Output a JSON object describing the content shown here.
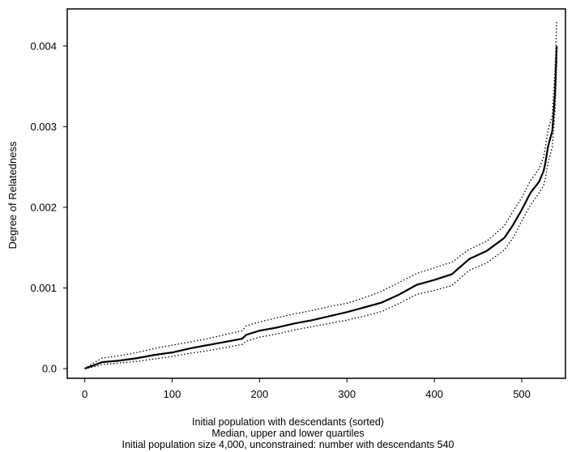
{
  "chart_data": {
    "type": "line",
    "title": "",
    "xlabel": "Initial population with descendants (sorted)",
    "ylabel": "Degree of Relatedness",
    "captions": [
      "Median, upper and lower quartiles",
      "Initial population size 4,000, unconstrained: number with descendants 540"
    ],
    "xlim": [
      -20,
      550
    ],
    "ylim": [
      -0.00012,
      0.00446
    ],
    "x_ticks": [
      0,
      100,
      200,
      300,
      400,
      500
    ],
    "y_ticks": [
      0.0,
      0.001,
      0.002,
      0.003,
      0.004
    ],
    "y_tick_labels": [
      "0.0",
      "0.001",
      "0.002",
      "0.003",
      "0.004"
    ],
    "grid": false,
    "legend": "none",
    "series": [
      {
        "style": "solid",
        "x": [
          0,
          10,
          20,
          40,
          60,
          80,
          100,
          120,
          140,
          160,
          180,
          185,
          200,
          220,
          240,
          260,
          280,
          300,
          320,
          340,
          360,
          380,
          400,
          420,
          440,
          460,
          480,
          490,
          500,
          510,
          520,
          525,
          527,
          530,
          535,
          538,
          540
        ],
        "y": [
          0.0,
          4e-05,
          8e-05,
          0.0001,
          0.00013,
          0.00017,
          0.0002,
          0.00025,
          0.00029,
          0.00033,
          0.00037,
          0.00042,
          0.00047,
          0.00051,
          0.00056,
          0.0006,
          0.00065,
          0.0007,
          0.00076,
          0.00082,
          0.00092,
          0.00104,
          0.0011,
          0.00117,
          0.00136,
          0.00146,
          0.00162,
          0.00178,
          0.00197,
          0.00218,
          0.00232,
          0.00245,
          0.00255,
          0.00275,
          0.00295,
          0.0034,
          0.004
        ]
      },
      {
        "style": "dotted",
        "x": [
          0,
          10,
          20,
          40,
          60,
          80,
          100,
          120,
          140,
          160,
          180,
          185,
          200,
          220,
          240,
          260,
          280,
          300,
          320,
          340,
          360,
          380,
          400,
          420,
          440,
          460,
          480,
          490,
          500,
          510,
          520,
          525,
          527,
          530,
          535,
          538,
          540
        ],
        "y": [
          0.0,
          7e-05,
          0.00013,
          0.00016,
          0.0002,
          0.00025,
          0.00029,
          0.00033,
          0.00037,
          0.00042,
          0.00047,
          0.00053,
          0.00058,
          0.00063,
          0.00068,
          0.00072,
          0.00077,
          0.00081,
          0.00088,
          0.00096,
          0.00107,
          0.00118,
          0.00125,
          0.00132,
          0.00148,
          0.00158,
          0.00177,
          0.00195,
          0.00212,
          0.00233,
          0.00248,
          0.00262,
          0.00275,
          0.00295,
          0.00315,
          0.0037,
          0.0043
        ]
      },
      {
        "style": "dotted",
        "x": [
          0,
          10,
          20,
          40,
          60,
          80,
          100,
          120,
          140,
          160,
          180,
          185,
          200,
          220,
          240,
          260,
          280,
          300,
          320,
          340,
          360,
          380,
          400,
          420,
          440,
          460,
          480,
          490,
          500,
          510,
          520,
          525,
          527,
          530,
          535,
          538,
          540
        ],
        "y": [
          0.0,
          2e-05,
          5e-05,
          7e-05,
          9e-05,
          0.00012,
          0.00015,
          0.00019,
          0.00022,
          0.00026,
          0.0003,
          0.00034,
          0.00039,
          0.00043,
          0.00048,
          0.00052,
          0.00056,
          0.0006,
          0.00065,
          0.00071,
          0.00081,
          0.00092,
          0.00097,
          0.00103,
          0.00122,
          0.00131,
          0.00147,
          0.00162,
          0.00183,
          0.00203,
          0.00218,
          0.00227,
          0.00236,
          0.00255,
          0.00275,
          0.0032,
          0.0038
        ]
      }
    ]
  }
}
